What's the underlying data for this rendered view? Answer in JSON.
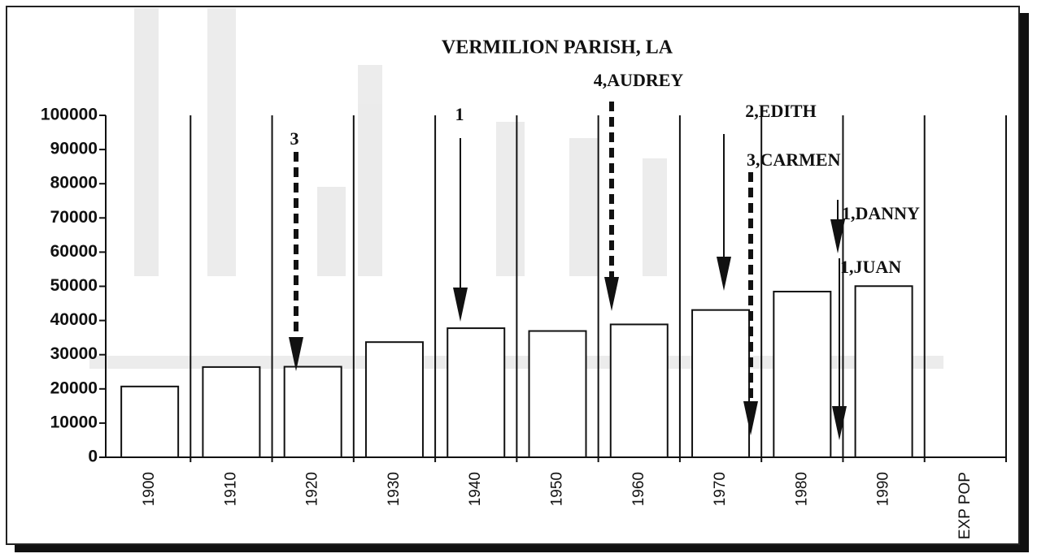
{
  "chart_data": {
    "type": "bar",
    "title": "VERMILION PARISH, LA",
    "categories": [
      "1900",
      "1910",
      "1920",
      "1930",
      "1940",
      "1950",
      "1960",
      "1970",
      "1980",
      "1990",
      "EXP POP"
    ],
    "values": [
      20705,
      26390,
      26482,
      33684,
      37750,
      36929,
      38855,
      43071,
      48458,
      50055,
      null
    ],
    "color": "#ffffff",
    "ylim": [
      0,
      100000
    ],
    "yticks": [
      0,
      10000,
      20000,
      30000,
      40000,
      50000,
      60000,
      70000,
      80000,
      90000,
      100000
    ],
    "annotations": [
      {
        "text": "3"
      },
      {
        "text": "1"
      },
      {
        "text": "4,AUDREY"
      },
      {
        "text": "2,EDITH"
      },
      {
        "text": "3,CARMEN"
      },
      {
        "text": "1,DANNY"
      },
      {
        "text": "1,JUAN"
      }
    ]
  }
}
